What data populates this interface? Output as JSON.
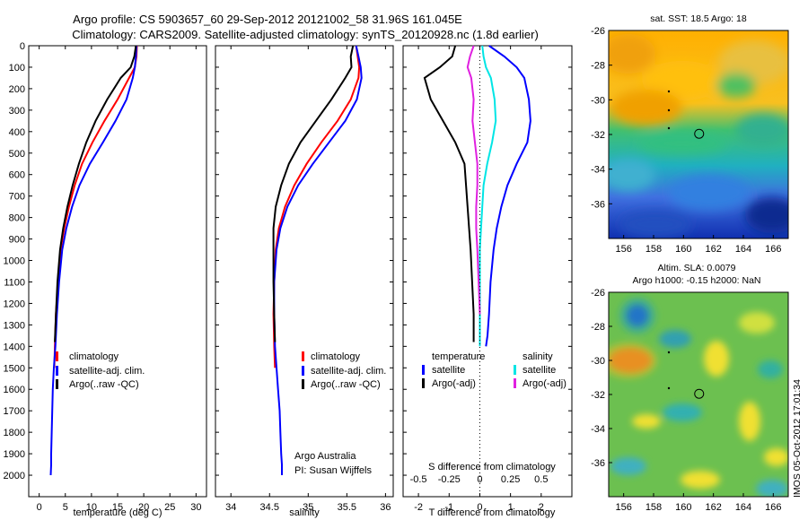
{
  "figure": {
    "title_line1": "Argo profile: CS 5903657_60 29-Sep-2012 20121002_58 31.96S 161.045E",
    "title_line2": "Climatology: CARS2009. Satellite-adjusted climatology: synTS_20120928.nc (1.8d earlier)",
    "side_stamp": "IMOS 05-Oct-2012 17:01:34",
    "credit_line1": "Argo Australia",
    "credit_line2": "PI: Susan Wijffels"
  },
  "colors": {
    "climatology": "#ff0000",
    "satellite": "#0000ff",
    "argo": "#000000",
    "t_sat": "#0000ff",
    "s_sat": "#00e5e5",
    "s_argo": "#e020e0"
  },
  "chart_data": [
    {
      "type": "line",
      "name": "temperature",
      "xlabel": "temperature (deg C)",
      "ylabel": "",
      "xlim": [
        -2,
        32
      ],
      "ylim": [
        2100,
        0
      ],
      "xticks": [
        0,
        5,
        10,
        15,
        20,
        25,
        30
      ],
      "yticks": [
        0,
        100,
        200,
        300,
        400,
        500,
        600,
        700,
        800,
        900,
        1000,
        1100,
        1200,
        1300,
        1400,
        1500,
        1600,
        1700,
        1800,
        1900,
        2000
      ],
      "legend": [
        "climatology",
        "satellite-adj. clim.",
        "Argo(..raw -QC)"
      ],
      "series": [
        {
          "name": "climatology",
          "color": "#ff0000",
          "x": [
            18.7,
            18.6,
            18.3,
            17.2,
            15.0,
            12.5,
            10.2,
            8.2,
            6.8,
            5.7,
            4.8,
            4.1,
            3.6,
            3.2,
            3.0,
            2.9
          ],
          "y": [
            0,
            50,
            100,
            150,
            250,
            350,
            450,
            550,
            650,
            750,
            850,
            950,
            1100,
            1250,
            1400,
            1500
          ]
        },
        {
          "name": "satellite-adj. clim.",
          "color": "#0000ff",
          "x": [
            18.6,
            18.5,
            18.3,
            17.9,
            16.7,
            14.6,
            12.2,
            9.7,
            7.7,
            6.3,
            5.2,
            4.4,
            3.8,
            3.4,
            3.1,
            2.8,
            2.6,
            2.5,
            2.4,
            2.3,
            2.3,
            2.2
          ],
          "y": [
            0,
            50,
            100,
            150,
            250,
            350,
            450,
            550,
            650,
            750,
            850,
            950,
            1100,
            1250,
            1400,
            1500,
            1600,
            1700,
            1800,
            1900,
            1950,
            2000
          ]
        },
        {
          "name": "Argo(..raw -QC)",
          "color": "#000000",
          "x": [
            18.5,
            18.2,
            17.5,
            15.6,
            13.0,
            10.8,
            9.0,
            7.6,
            6.4,
            5.4,
            4.6,
            4.0,
            3.5,
            3.2,
            3.0
          ],
          "y": [
            0,
            50,
            100,
            150,
            250,
            350,
            450,
            550,
            650,
            750,
            850,
            950,
            1100,
            1250,
            1380
          ]
        }
      ]
    },
    {
      "type": "line",
      "name": "salinity",
      "xlabel": "salinity",
      "xlim": [
        33.8,
        36.1
      ],
      "ylim": [
        2100,
        0
      ],
      "xticks": [
        34,
        34.5,
        35,
        35.5,
        36
      ],
      "legend": [
        "climatology",
        "satellite-adj. clim.",
        "Argo(..raw -QC)"
      ],
      "series": [
        {
          "name": "climatology",
          "color": "#ff0000",
          "x": [
            35.62,
            35.64,
            35.66,
            35.65,
            35.55,
            35.38,
            35.17,
            34.98,
            34.82,
            34.7,
            34.62,
            34.58,
            34.56,
            34.55,
            34.56,
            34.57
          ],
          "y": [
            0,
            50,
            100,
            150,
            250,
            350,
            450,
            550,
            650,
            750,
            850,
            950,
            1100,
            1250,
            1400,
            1500
          ]
        },
        {
          "name": "satellite-adj. clim.",
          "color": "#0000ff",
          "x": [
            35.62,
            35.65,
            35.68,
            35.69,
            35.63,
            35.48,
            35.27,
            35.06,
            34.87,
            34.73,
            34.64,
            34.59,
            34.56,
            34.56,
            34.57,
            34.59,
            34.61,
            34.63,
            34.64,
            34.65,
            34.66,
            34.66
          ],
          "y": [
            0,
            50,
            100,
            150,
            250,
            350,
            450,
            550,
            650,
            750,
            850,
            950,
            1100,
            1250,
            1400,
            1500,
            1600,
            1700,
            1800,
            1900,
            1950,
            2000
          ]
        },
        {
          "name": "Argo(..raw -QC)",
          "color": "#000000",
          "x": [
            35.58,
            35.55,
            35.56,
            35.48,
            35.3,
            35.1,
            34.9,
            34.75,
            34.65,
            34.58,
            34.55,
            34.55,
            34.55,
            34.56,
            34.57
          ],
          "y": [
            0,
            50,
            100,
            150,
            250,
            350,
            450,
            550,
            650,
            750,
            850,
            950,
            1100,
            1250,
            1380
          ]
        }
      ]
    },
    {
      "type": "line",
      "name": "difference from climatology",
      "xlabel": "T difference from climatology",
      "xlabel_top": "S difference from climatology",
      "xlim": [
        -2.5,
        3
      ],
      "ylim": [
        2100,
        0
      ],
      "xticks": [
        -2,
        -1,
        0,
        1,
        2
      ],
      "xticks_top": [
        -0.5,
        -0.25,
        0,
        0.25,
        0.5
      ],
      "legend_left_title": "temperature",
      "legend_right_title": "salinity",
      "legend": [
        "satellite",
        "Argo(-adj)",
        "satellite",
        "Argo(-adj)"
      ],
      "series": [
        {
          "name": "temperature satellite",
          "color": "#0000ff",
          "x": [
            0.3,
            0.8,
            1.2,
            1.45,
            1.6,
            1.65,
            1.55,
            1.2,
            0.9,
            0.7,
            0.55,
            0.45,
            0.35,
            0.3,
            0.25,
            0.2
          ],
          "y": [
            0,
            50,
            100,
            150,
            250,
            350,
            450,
            550,
            650,
            750,
            850,
            950,
            1100,
            1250,
            1350,
            1400
          ]
        },
        {
          "name": "temperature Argo(-adj)",
          "color": "#000000",
          "x": [
            -0.8,
            -0.9,
            -1.3,
            -1.8,
            -1.6,
            -1.2,
            -0.8,
            -0.5,
            -0.45,
            -0.4,
            -0.35,
            -0.3,
            -0.25,
            -0.2,
            -0.2
          ],
          "y": [
            0,
            50,
            100,
            150,
            250,
            350,
            450,
            550,
            650,
            750,
            850,
            950,
            1100,
            1250,
            1380
          ]
        },
        {
          "name": "salinity satellite",
          "color": "#00e5e5",
          "x": [
            0.02,
            0.03,
            0.05,
            0.09,
            0.12,
            0.13,
            0.1,
            0.06,
            0.03,
            0.02,
            0.01,
            0.0,
            0.0,
            0.0,
            0.0
          ],
          "y": [
            0,
            50,
            100,
            150,
            250,
            350,
            450,
            550,
            650,
            750,
            850,
            950,
            1100,
            1250,
            1400
          ]
        },
        {
          "name": "salinity Argo(-adj)",
          "color": "#e020e0",
          "x": [
            -0.05,
            -0.08,
            -0.1,
            -0.07,
            -0.05,
            -0.06,
            -0.04,
            -0.02,
            -0.02,
            -0.03,
            -0.03,
            -0.02,
            -0.01,
            0.0
          ],
          "y": [
            0,
            50,
            100,
            150,
            250,
            350,
            450,
            550,
            650,
            750,
            850,
            950,
            1100,
            1250
          ]
        }
      ]
    },
    {
      "type": "heatmap",
      "name": "sat SST map",
      "title": "sat. SST: 18.5  Argo: 18",
      "xticks": [
        156,
        158,
        160,
        162,
        164,
        166
      ],
      "yticks": [
        -26,
        -28,
        -30,
        -32,
        -34,
        -36
      ],
      "xlim": [
        155,
        167
      ],
      "ylim": [
        -38,
        -26
      ],
      "marker": {
        "lon": 161.045,
        "lat": -31.96
      }
    },
    {
      "type": "heatmap",
      "name": "altimetry map",
      "title_line1": "Altim. SLA: 0.0079",
      "title_line2": "Argo h1000: -0.15 h2000: NaN",
      "xticks": [
        156,
        158,
        160,
        162,
        164,
        166
      ],
      "yticks": [
        -26,
        -28,
        -30,
        -32,
        -34,
        -36
      ],
      "xlim": [
        155,
        167
      ],
      "ylim": [
        -38,
        -26
      ],
      "marker": {
        "lon": 161.045,
        "lat": -31.96
      }
    }
  ]
}
